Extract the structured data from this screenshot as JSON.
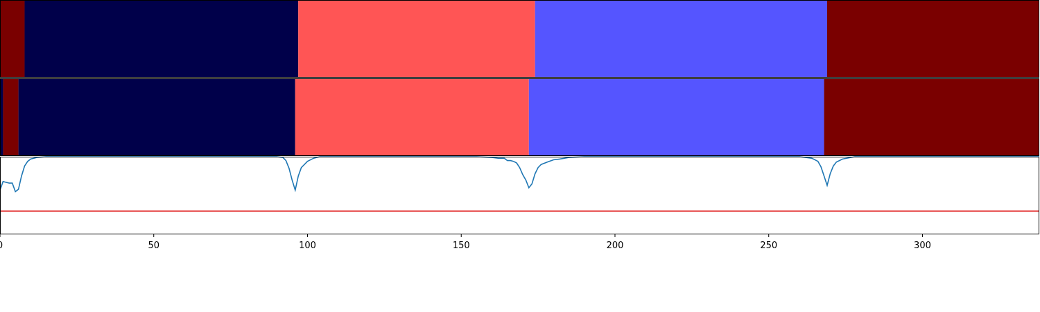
{
  "chart_data": [
    {
      "type": "heatmap",
      "row": "top",
      "xlim": [
        0,
        338
      ],
      "segments": [
        {
          "start": 0,
          "end": 8,
          "color": "#7a0000"
        },
        {
          "start": 8,
          "end": 97,
          "color": "#00004a"
        },
        {
          "start": 97,
          "end": 174,
          "color": "#ff5555"
        },
        {
          "start": 174,
          "end": 269,
          "color": "#5555ff"
        },
        {
          "start": 269,
          "end": 338,
          "color": "#7a0000"
        }
      ]
    },
    {
      "type": "heatmap",
      "row": "middle",
      "xlim": [
        0,
        338
      ],
      "segments": [
        {
          "start": 0,
          "end": 1,
          "color": "#00004a"
        },
        {
          "start": 1,
          "end": 6,
          "color": "#7a0000"
        },
        {
          "start": 6,
          "end": 96,
          "color": "#00004a"
        },
        {
          "start": 96,
          "end": 172,
          "color": "#ff5555"
        },
        {
          "start": 172,
          "end": 268,
          "color": "#5555ff"
        },
        {
          "start": 268,
          "end": 338,
          "color": "#7a0000"
        }
      ]
    },
    {
      "type": "line",
      "xlim": [
        0,
        338
      ],
      "ylim": [
        0,
        1
      ],
      "threshold": 0.3,
      "threshold_color": "#dd0000",
      "line_color": "#1f77b4",
      "xticks": [
        0,
        50,
        100,
        150,
        200,
        250,
        300
      ],
      "xtick_labels": [
        "0",
        "50",
        "100",
        "150",
        "200",
        "250",
        "300"
      ],
      "x": [
        0,
        1,
        2,
        3,
        4,
        5,
        6,
        7,
        8,
        9,
        10,
        12,
        15,
        30,
        60,
        90,
        92,
        93,
        94,
        95,
        96,
        97,
        98,
        99,
        100,
        102,
        104,
        110,
        140,
        155,
        160,
        162,
        164,
        165,
        166,
        167,
        168,
        169,
        170,
        171,
        172,
        173,
        174,
        175,
        176,
        178,
        180,
        182,
        185,
        190,
        200,
        230,
        260,
        264,
        266,
        267,
        268,
        269,
        270,
        271,
        272,
        274,
        278,
        300,
        330,
        338
      ],
      "y": [
        0.57,
        0.68,
        0.67,
        0.66,
        0.66,
        0.55,
        0.58,
        0.75,
        0.88,
        0.94,
        0.97,
        0.99,
        1.0,
        1.0,
        1.0,
        1.0,
        0.99,
        0.95,
        0.85,
        0.7,
        0.57,
        0.75,
        0.86,
        0.9,
        0.94,
        0.98,
        1.0,
        1.0,
        1.0,
        1.0,
        0.99,
        0.98,
        0.98,
        0.95,
        0.95,
        0.94,
        0.92,
        0.86,
        0.77,
        0.7,
        0.6,
        0.65,
        0.78,
        0.86,
        0.9,
        0.93,
        0.96,
        0.97,
        0.99,
        1.0,
        1.0,
        1.0,
        1.0,
        0.98,
        0.94,
        0.87,
        0.75,
        0.63,
        0.78,
        0.88,
        0.93,
        0.97,
        1.0,
        1.0,
        1.0,
        1.0
      ]
    }
  ]
}
